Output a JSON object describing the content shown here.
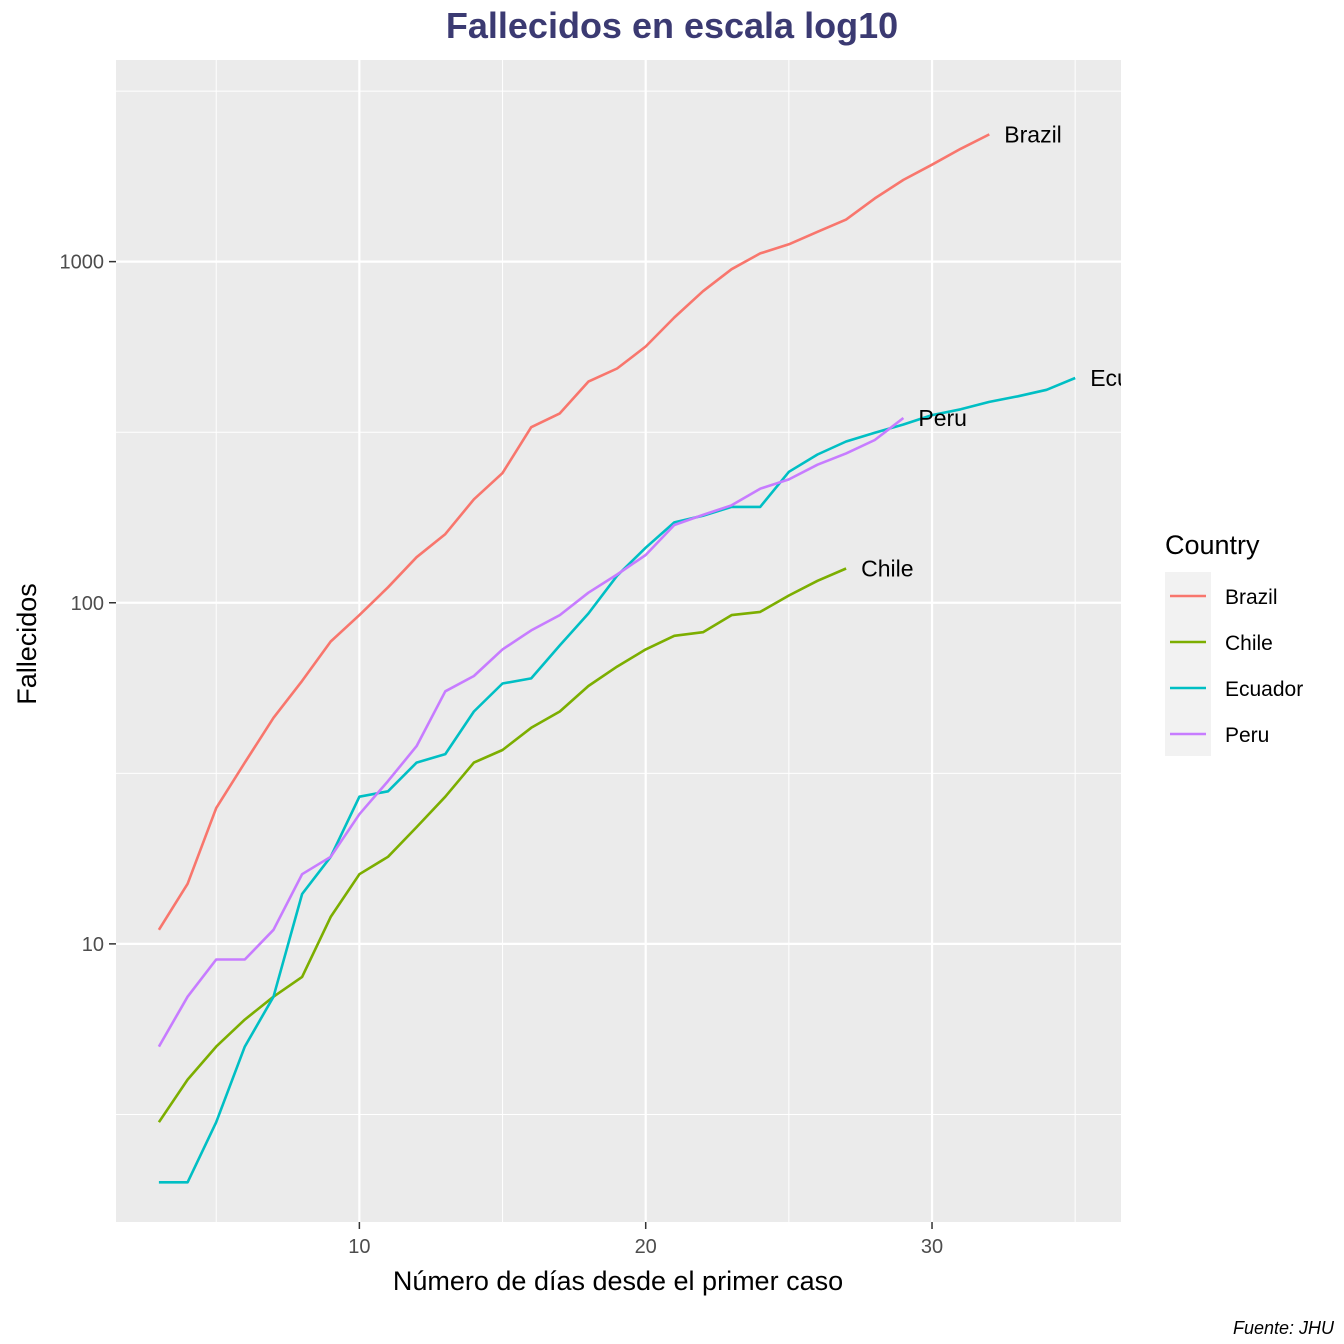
{
  "chart_data": {
    "type": "line",
    "title": "Fallecidos en escala log10",
    "xlabel": "Número de días desde el primer caso",
    "ylabel": "Fallecidos",
    "caption": "Fuente: JHU",
    "y_scale": "log10",
    "xlim": [
      1.5,
      36.6
    ],
    "ylim": [
      1.53,
      3900
    ],
    "x_ticks": [
      10,
      20,
      30
    ],
    "y_ticks": [
      10,
      100,
      1000
    ],
    "grid": true,
    "legend": {
      "title": "Country",
      "position": "right"
    },
    "series": [
      {
        "name": "Brazil",
        "color": "#F8766D",
        "x": [
          3,
          4,
          5,
          6,
          7,
          8,
          9,
          10,
          11,
          12,
          13,
          14,
          15,
          16,
          17,
          18,
          19,
          20,
          21,
          22,
          23,
          24,
          25,
          26,
          27,
          28,
          29,
          30,
          31,
          32
        ],
        "y": [
          11,
          15,
          25,
          34,
          46,
          59,
          77,
          92,
          111,
          136,
          159,
          201,
          240,
          327,
          359,
          445,
          486,
          564,
          686,
          819,
          950,
          1057,
          1124,
          1223,
          1328,
          1532,
          1736,
          1924,
          2141,
          2361
        ]
      },
      {
        "name": "Chile",
        "color": "#7CAE00",
        "x": [
          3,
          4,
          5,
          6,
          7,
          8,
          9,
          10,
          11,
          12,
          13,
          14,
          15,
          16,
          17,
          18,
          19,
          20,
          21,
          22,
          23,
          24,
          25,
          26,
          27
        ],
        "y": [
          3,
          4,
          5,
          6,
          7,
          8,
          12,
          16,
          18,
          22,
          27,
          34,
          37,
          43,
          48,
          57,
          65,
          73,
          80,
          82,
          92,
          94,
          105,
          116,
          126
        ]
      },
      {
        "name": "Ecuador",
        "color": "#00BFC4",
        "x": [
          3,
          4,
          5,
          6,
          7,
          8,
          9,
          10,
          11,
          12,
          13,
          14,
          15,
          16,
          17,
          18,
          19,
          20,
          21,
          22,
          23,
          24,
          25,
          26,
          27,
          28,
          29,
          30,
          31,
          32,
          33,
          34,
          35
        ],
        "y": [
          2,
          2,
          3,
          5,
          7,
          14,
          18,
          27,
          28,
          34,
          36,
          48,
          58,
          60,
          75,
          93,
          120,
          145,
          172,
          180,
          191,
          191,
          242,
          272,
          297,
          315,
          333,
          355,
          369,
          388,
          403,
          421,
          456
        ]
      },
      {
        "name": "Peru",
        "color": "#C77CFF",
        "x": [
          3,
          4,
          5,
          6,
          7,
          8,
          9,
          10,
          11,
          12,
          13,
          14,
          15,
          16,
          17,
          18,
          19,
          20,
          21,
          22,
          23,
          24,
          25,
          26,
          27,
          28,
          29
        ],
        "y": [
          5,
          7,
          9,
          9,
          11,
          16,
          18,
          24,
          30,
          38,
          55,
          61,
          73,
          83,
          92,
          107,
          121,
          138,
          169,
          181,
          193,
          216,
          230,
          254,
          274,
          300,
          348
        ]
      }
    ]
  }
}
